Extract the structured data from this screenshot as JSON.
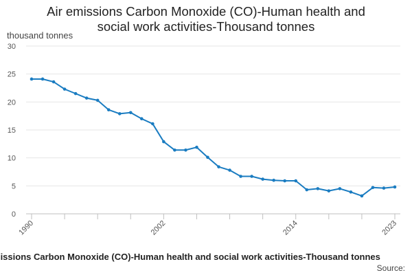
{
  "chart_data": {
    "type": "line",
    "title_line1": "Air emissions Carbon Monoxide (CO)-Human health and",
    "title_line2": "social work activities-Thousand tonnes",
    "ylabel": "thousand tonnes",
    "xlabel": "",
    "ylim": [
      0,
      30
    ],
    "yticks": [
      0,
      5,
      10,
      15,
      20,
      25,
      30
    ],
    "xtick_labels": [
      "1990",
      "2002",
      "2014",
      "2023"
    ],
    "grid": true,
    "series": [
      {
        "name": "Air emissions Carbon Monoxide (CO)-Human health and social work activities-Thousand tonnes",
        "color": "#1a7cc1",
        "x": [
          1990,
          1991,
          1992,
          1993,
          1994,
          1995,
          1996,
          1997,
          1998,
          1999,
          2000,
          2001,
          2002,
          2003,
          2004,
          2005,
          2006,
          2007,
          2008,
          2009,
          2010,
          2011,
          2012,
          2013,
          2014,
          2015,
          2016,
          2017,
          2018,
          2019,
          2020,
          2021,
          2022,
          2023
        ],
        "values": [
          24.1,
          24.1,
          23.6,
          22.3,
          21.5,
          20.7,
          20.3,
          18.6,
          17.9,
          18.1,
          17.0,
          16.1,
          12.9,
          11.4,
          11.4,
          11.9,
          10.1,
          8.4,
          7.8,
          6.7,
          6.7,
          6.2,
          6.0,
          5.9,
          5.9,
          4.3,
          4.5,
          4.1,
          4.5,
          3.9,
          3.2,
          4.7,
          4.6,
          4.8
        ]
      }
    ]
  },
  "footer": {
    "title": "Air emissions Carbon Monoxide (CO)-Human health and social work activities-Thousand tonnes",
    "source": "Source: "
  }
}
